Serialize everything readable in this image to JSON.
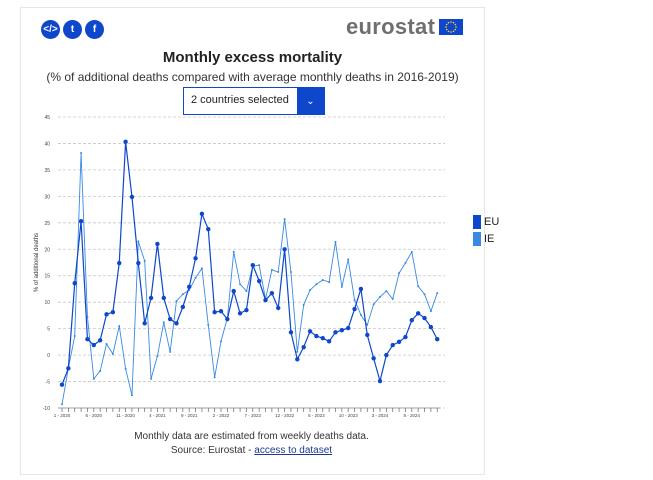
{
  "share": {
    "embed_icon": "embed-icon",
    "twitter_icon": "twitter-icon",
    "facebook_icon": "facebook-icon"
  },
  "brand": {
    "name": "eurostat",
    "flag_icon": "eu-flag-icon",
    "color": "#0e47cb"
  },
  "selector": {
    "value": "2 countries selected",
    "icon": "chevron-down-icon"
  },
  "footer": {
    "note": "Monthly data are estimated from weekly deaths data.",
    "source_prefix": "Source: Eurostat - ",
    "source_link": "access to dataset"
  },
  "chart_data": {
    "type": "line",
    "title": "Monthly excess mortality",
    "subtitle": "(% of additional deaths compared with average monthly deaths in 2016-2019)",
    "xlabel": "",
    "ylabel": "% of additional deaths",
    "ylim": [
      -10,
      45
    ],
    "yticks": [
      -10,
      -5,
      0,
      5,
      10,
      15,
      20,
      25,
      30,
      35,
      40,
      45
    ],
    "grid": true,
    "legend_position": "right",
    "x": [
      "1-2020",
      "2-2020",
      "3-2020",
      "4-2020",
      "5-2020",
      "6-2020",
      "7-2020",
      "8-2020",
      "9-2020",
      "10-2020",
      "11-2020",
      "12-2020",
      "1-2021",
      "2-2021",
      "3-2021",
      "4-2021",
      "5-2021",
      "6-2021",
      "7-2021",
      "8-2021",
      "9-2021",
      "10-2021",
      "11-2021",
      "12-2021",
      "1-2022",
      "2-2022",
      "3-2022",
      "4-2022",
      "5-2022",
      "6-2022",
      "7-2022",
      "8-2022",
      "9-2022",
      "10-2022",
      "11-2022",
      "12-2022",
      "1-2023",
      "2-2023",
      "3-2023",
      "4-2023",
      "5-2023",
      "6-2023",
      "7-2023",
      "8-2023",
      "9-2023",
      "10-2023",
      "11-2023",
      "12-2023",
      "1-2024",
      "2-2024",
      "3-2024",
      "4-2024",
      "5-2024",
      "6-2024",
      "7-2024",
      "8-2024",
      "9-2024",
      "10-2024",
      "11-2024",
      "12-2024"
    ],
    "xtick_labels": [
      "1 - 2020",
      "6 - 2020",
      "11 - 2020",
      "4 - 2021",
      "9 - 2021",
      "2 - 2022",
      "7 - 2022",
      "12 - 2022",
      "5 - 2023",
      "10 - 2023",
      "3 - 2024",
      "8 - 2024"
    ],
    "series": [
      {
        "name": "EU",
        "color": "#0e47cb",
        "values": [
          -5.6,
          -2.5,
          13.6,
          25.3,
          3.0,
          1.9,
          2.8,
          7.7,
          8.1,
          17.4,
          40.3,
          29.9,
          17.4,
          6.0,
          10.8,
          21.0,
          10.8,
          6.8,
          6.0,
          9.1,
          12.9,
          18.3,
          26.7,
          23.8,
          8.1,
          8.3,
          6.8,
          12.1,
          7.9,
          8.5,
          17.0,
          14.0,
          10.4,
          11.7,
          8.9,
          20.0,
          4.3,
          -0.8,
          1.5,
          4.5,
          3.6,
          3.2,
          2.6,
          4.3,
          4.7,
          5.1,
          8.7,
          12.5,
          3.8,
          -0.6,
          -4.9,
          0.0,
          1.9,
          2.5,
          3.4,
          6.6,
          7.9,
          7.0,
          5.3,
          3.0
        ]
      },
      {
        "name": "IE",
        "color": "#388ae2",
        "values": [
          -9.3,
          -2.5,
          3.6,
          38.2,
          7.2,
          -4.5,
          -3.0,
          2.1,
          0.2,
          5.5,
          -2.6,
          -7.6,
          21.5,
          17.8,
          -4.5,
          -0.2,
          6.2,
          0.6,
          10.2,
          11.5,
          12.3,
          14.6,
          16.4,
          5.7,
          -4.2,
          2.6,
          7.0,
          19.5,
          13.4,
          12.1,
          16.8,
          17.0,
          10.6,
          16.1,
          15.7,
          25.7,
          15.7,
          0.6,
          9.5,
          12.3,
          13.4,
          14.2,
          13.8,
          21.4,
          12.9,
          18.1,
          10.4,
          7.6,
          5.7,
          9.6,
          11.0,
          12.1,
          10.6,
          15.5,
          17.4,
          19.5,
          13.0,
          11.5,
          8.3,
          11.7
        ]
      }
    ]
  }
}
